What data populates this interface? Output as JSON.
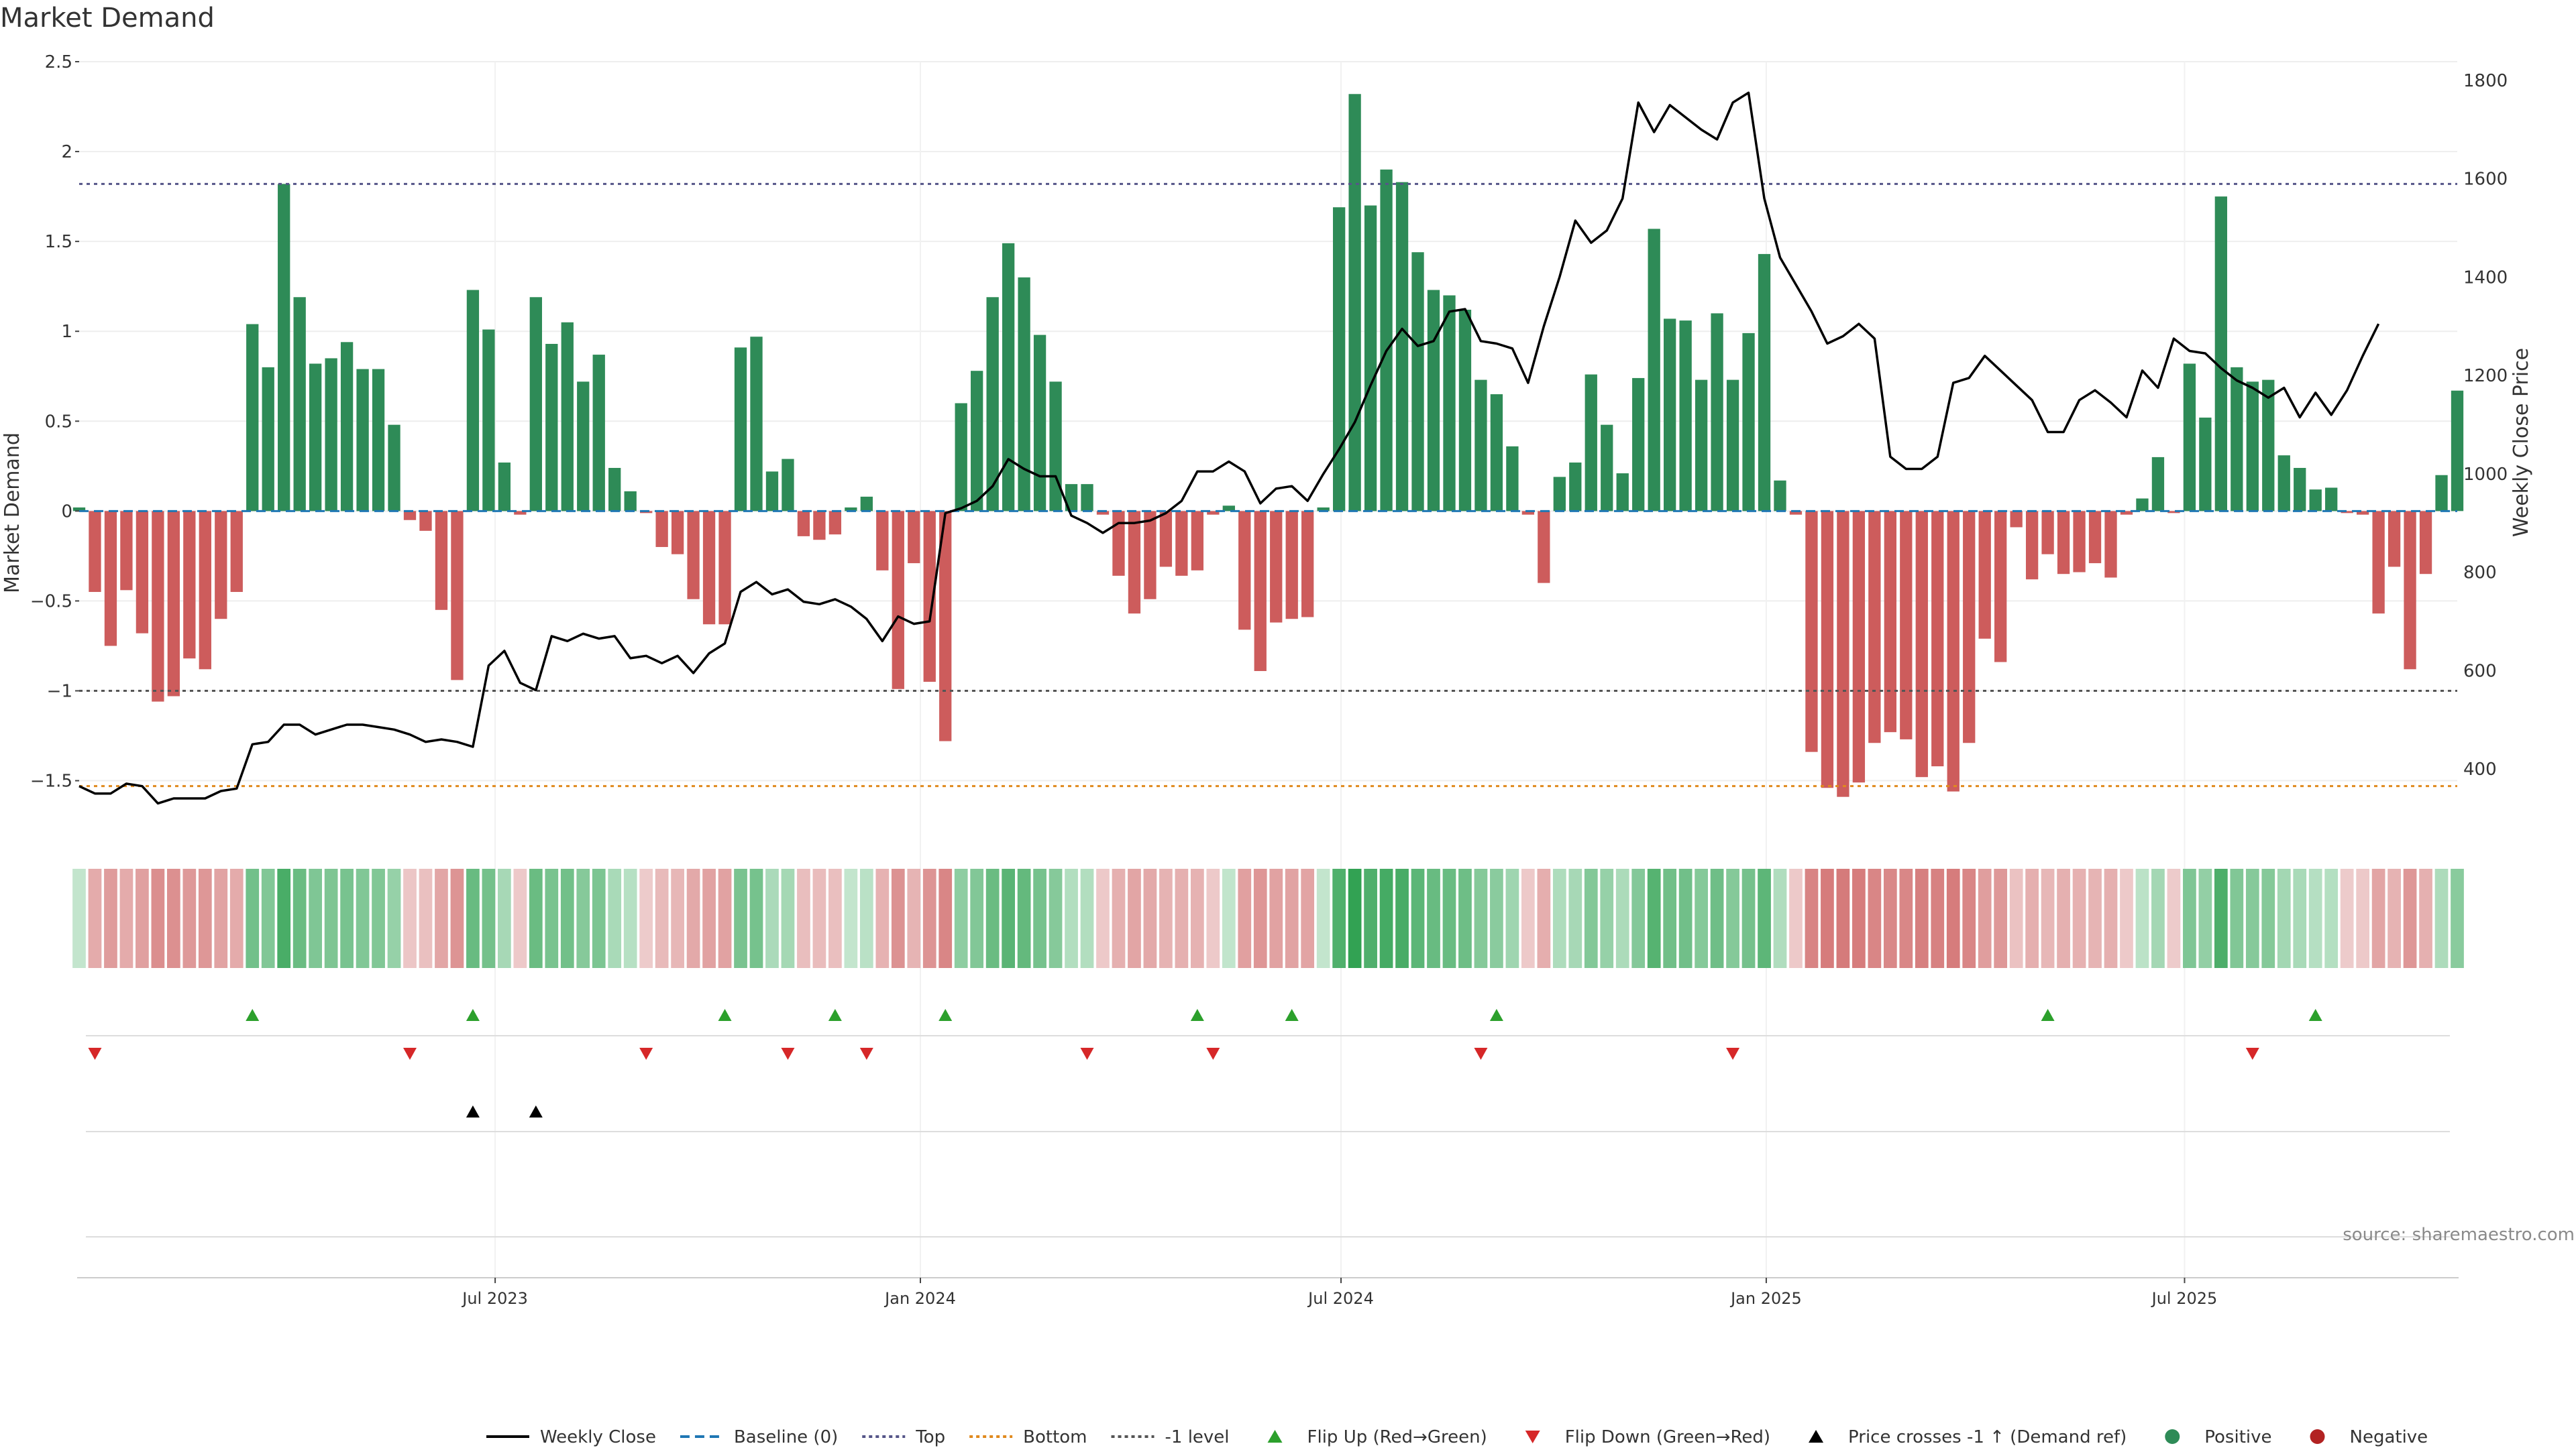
{
  "chart_data": {
    "type": "bar",
    "title": "Market Demand",
    "ylabel": "Market Demand",
    "y2label": "Weekly Close Price",
    "ylim": [
      -1.8,
      2.5
    ],
    "y2lim": [
      320,
      1800
    ],
    "yticks": [
      "2.5",
      "2",
      "1.5",
      "1",
      "0.5",
      "0",
      "−0.5",
      "−1",
      "−1.5"
    ],
    "yticks_values": [
      2.5,
      2,
      1.5,
      1,
      0.5,
      0,
      -0.5,
      -1,
      -1.5
    ],
    "y2ticks": [
      "1800",
      "1600",
      "1400",
      "1200",
      "1000",
      "800",
      "600",
      "400"
    ],
    "y2ticks_values": [
      1800,
      1600,
      1400,
      1200,
      1000,
      800,
      600,
      400
    ],
    "x_start": "2023-01-02",
    "x_end": "2025-10-27",
    "xticks": [
      {
        "label": "Jul 2023",
        "date": "2023-07-01"
      },
      {
        "label": "Jan 2024",
        "date": "2024-01-01"
      },
      {
        "label": "Jul 2024",
        "date": "2024-07-01"
      },
      {
        "label": "Jan 2025",
        "date": "2025-01-01"
      },
      {
        "label": "Jul 2025",
        "date": "2025-07-01"
      }
    ],
    "reference_lines": {
      "baseline": 0,
      "top": 1.82,
      "bottom": -1.53,
      "minus_one": -1.0
    },
    "demand": [
      0.02,
      -0.45,
      -0.75,
      -0.44,
      -0.68,
      -1.06,
      -1.03,
      -0.82,
      -0.88,
      -0.6,
      -0.45,
      1.04,
      0.8,
      1.82,
      1.19,
      0.82,
      0.85,
      0.94,
      0.79,
      0.79,
      0.48,
      -0.05,
      -0.11,
      -0.55,
      -0.94,
      1.23,
      1.01,
      0.27,
      -0.02,
      1.19,
      0.93,
      1.05,
      0.72,
      0.87,
      0.24,
      0.11,
      -0.01,
      -0.2,
      -0.24,
      -0.49,
      -0.63,
      -0.63,
      0.91,
      0.97,
      0.22,
      0.29,
      -0.14,
      -0.16,
      -0.13,
      0.02,
      0.08,
      -0.33,
      -0.99,
      -0.29,
      -0.95,
      -1.28,
      0.6,
      0.78,
      1.19,
      1.49,
      1.3,
      0.98,
      0.72,
      0.15,
      0.15,
      -0.02,
      -0.36,
      -0.57,
      -0.49,
      -0.31,
      -0.36,
      -0.33,
      -0.02,
      0.03,
      -0.66,
      -0.89,
      -0.62,
      -0.6,
      -0.59,
      0.02,
      1.69,
      2.32,
      1.7,
      1.9,
      1.83,
      1.44,
      1.23,
      1.2,
      1.12,
      0.73,
      0.65,
      0.36,
      -0.02,
      -0.4,
      0.19,
      0.27,
      0.76,
      0.48,
      0.21,
      0.74,
      1.57,
      1.07,
      1.06,
      0.73,
      1.1,
      0.73,
      0.99,
      1.43,
      0.17,
      -0.02,
      -1.34,
      -1.54,
      -1.59,
      -1.51,
      -1.29,
      -1.23,
      -1.27,
      -1.48,
      -1.42,
      -1.56,
      -1.29,
      -0.71,
      -0.84,
      -0.09,
      -0.38,
      -0.24,
      -0.35,
      -0.34,
      -0.29,
      -0.37,
      -0.02,
      0.07,
      0.3,
      -0.01,
      0.82,
      0.52,
      1.75,
      0.8,
      0.72,
      0.73,
      0.31,
      0.24,
      0.12,
      0.13,
      -0.01,
      -0.02,
      -0.57,
      -0.31,
      -0.88,
      -0.35,
      0.2,
      0.67
    ],
    "price": [
      365,
      350,
      350,
      370,
      365,
      330,
      340,
      340,
      340,
      355,
      360,
      450,
      455,
      490,
      490,
      470,
      480,
      490,
      490,
      485,
      480,
      470,
      455,
      460,
      455,
      445,
      610,
      640,
      575,
      560,
      670,
      660,
      675,
      665,
      670,
      625,
      630,
      615,
      630,
      595,
      635,
      655,
      760,
      780,
      755,
      765,
      740,
      735,
      745,
      730,
      705,
      660,
      710,
      695,
      700,
      920,
      930,
      945,
      975,
      1030,
      1010,
      995,
      995,
      915,
      900,
      880,
      900,
      900,
      905,
      920,
      945,
      1005,
      1005,
      1025,
      1005,
      940,
      970,
      975,
      945,
      1000,
      1050,
      1105,
      1180,
      1250,
      1295,
      1260,
      1270,
      1330,
      1335,
      1270,
      1265,
      1255,
      1185,
      1300,
      1400,
      1515,
      1470,
      1495,
      1560,
      1755,
      1695,
      1750,
      1725,
      1700,
      1680,
      1755,
      1775,
      1560,
      1440,
      1385,
      1330,
      1265,
      1280,
      1305,
      1275,
      1035,
      1010,
      1010,
      1035,
      1185,
      1195,
      1240,
      1210,
      1180,
      1150,
      1085,
      1085,
      1150,
      1170,
      1145,
      1115,
      1210,
      1175,
      1275,
      1250,
      1245,
      1215,
      1190,
      1175,
      1155,
      1175,
      1115,
      1165,
      1120,
      1170,
      1240,
      1305
    ],
    "flip_up": [
      11,
      25,
      41,
      48,
      55,
      71,
      77,
      90,
      125,
      142
    ],
    "flip_down": [
      1,
      21,
      36,
      45,
      50,
      64,
      72,
      89,
      105,
      138
    ],
    "price_cross": [
      25,
      29
    ],
    "legend": [
      {
        "label": "Weekly Close",
        "kind": "line",
        "color": "#000000"
      },
      {
        "label": "Baseline (0)",
        "kind": "dash",
        "color": "#1f77b4"
      },
      {
        "label": "Top",
        "kind": "dot",
        "color": "#555588"
      },
      {
        "label": "Bottom",
        "kind": "dot",
        "color": "#e08a1e"
      },
      {
        "label": "-1 level",
        "kind": "dot",
        "color": "#555555"
      },
      {
        "label": "Flip Up (Red→Green)",
        "kind": "tri-up",
        "color": "#2ca02c"
      },
      {
        "label": "Flip Down (Green→Red)",
        "kind": "tri-down",
        "color": "#d62728"
      },
      {
        "label": "Price crosses -1 ↑ (Demand ref)",
        "kind": "tri-up",
        "color": "#000000"
      },
      {
        "label": "Positive",
        "kind": "dot-marker",
        "color": "#2e8b57"
      },
      {
        "label": "Negative",
        "kind": "dot-marker",
        "color": "#b22222"
      }
    ],
    "colors": {
      "positive": "#2e8b57",
      "negative": "#cd5c5c",
      "price": "#000000",
      "baseline": "#1f77b4",
      "top": "#555588",
      "bottom": "#e08a1e",
      "minus_one": "#555555"
    }
  },
  "source": "source: sharemaestro.com"
}
